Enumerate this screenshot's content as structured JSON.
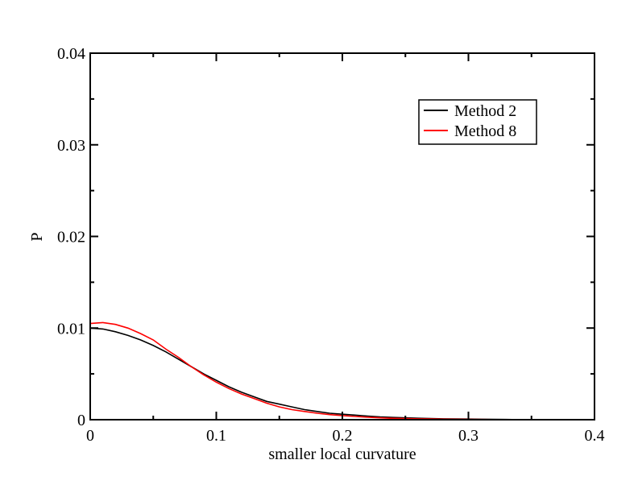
{
  "chart_data": {
    "type": "line",
    "xlabel": "smaller local curvature",
    "ylabel": "P",
    "xlim": [
      0,
      0.4
    ],
    "ylim": [
      0,
      0.04
    ],
    "x_ticks": [
      "0",
      "0.1",
      "0.2",
      "0.3",
      "0.4"
    ],
    "y_ticks": [
      "0",
      "0.01",
      "0.02",
      "0.03",
      "0.04"
    ],
    "grid": false,
    "legend_position": "top-right",
    "series": [
      {
        "name": "Method 2",
        "color": "#000000",
        "x": [
          0.0,
          0.01,
          0.02,
          0.03,
          0.04,
          0.05,
          0.06,
          0.07,
          0.08,
          0.09,
          0.1,
          0.11,
          0.12,
          0.13,
          0.14,
          0.15,
          0.16,
          0.17,
          0.18,
          0.19,
          0.2,
          0.21,
          0.22,
          0.23,
          0.24,
          0.25,
          0.26,
          0.27,
          0.28,
          0.29,
          0.3,
          0.31,
          0.32,
          0.33,
          0.34,
          0.35,
          0.36,
          0.37,
          0.38
        ],
        "y": [
          0.01,
          0.0099,
          0.0096,
          0.0092,
          0.0087,
          0.0081,
          0.0074,
          0.0066,
          0.0058,
          0.005,
          0.0043,
          0.0036,
          0.003,
          0.0025,
          0.002,
          0.0017,
          0.0014,
          0.0011,
          0.0009,
          0.0007,
          0.0006,
          0.0005,
          0.0004,
          0.0003,
          0.00025,
          0.0002,
          0.00016,
          0.00013,
          0.0001,
          8e-05,
          7e-05,
          5e-05,
          4e-05,
          3e-05,
          2e-05,
          2e-05,
          1e-05,
          1e-05,
          1e-05
        ]
      },
      {
        "name": "Method 8",
        "color": "#ff0000",
        "x": [
          0.0,
          0.01,
          0.02,
          0.03,
          0.04,
          0.05,
          0.06,
          0.07,
          0.08,
          0.09,
          0.1,
          0.11,
          0.12,
          0.13,
          0.14,
          0.15,
          0.16,
          0.17,
          0.18,
          0.19,
          0.2,
          0.21,
          0.22,
          0.23,
          0.24,
          0.25,
          0.26,
          0.27,
          0.28,
          0.29,
          0.3,
          0.31,
          0.32,
          0.33,
          0.34,
          0.35,
          0.36,
          0.37,
          0.38
        ],
        "y": [
          0.0105,
          0.0106,
          0.0104,
          0.01,
          0.0094,
          0.0087,
          0.0077,
          0.0068,
          0.0058,
          0.0049,
          0.0041,
          0.0034,
          0.0028,
          0.0023,
          0.0018,
          0.0014,
          0.0011,
          0.0009,
          0.0007,
          0.00055,
          0.00045,
          0.00035,
          0.00027,
          0.0002,
          0.00015,
          0.00012,
          0.0001,
          8e-05,
          6e-05,
          5e-05,
          4e-05,
          3e-05,
          2e-05,
          2e-05,
          1e-05,
          1e-05,
          1e-05,
          1e-05,
          1e-05
        ]
      }
    ]
  }
}
